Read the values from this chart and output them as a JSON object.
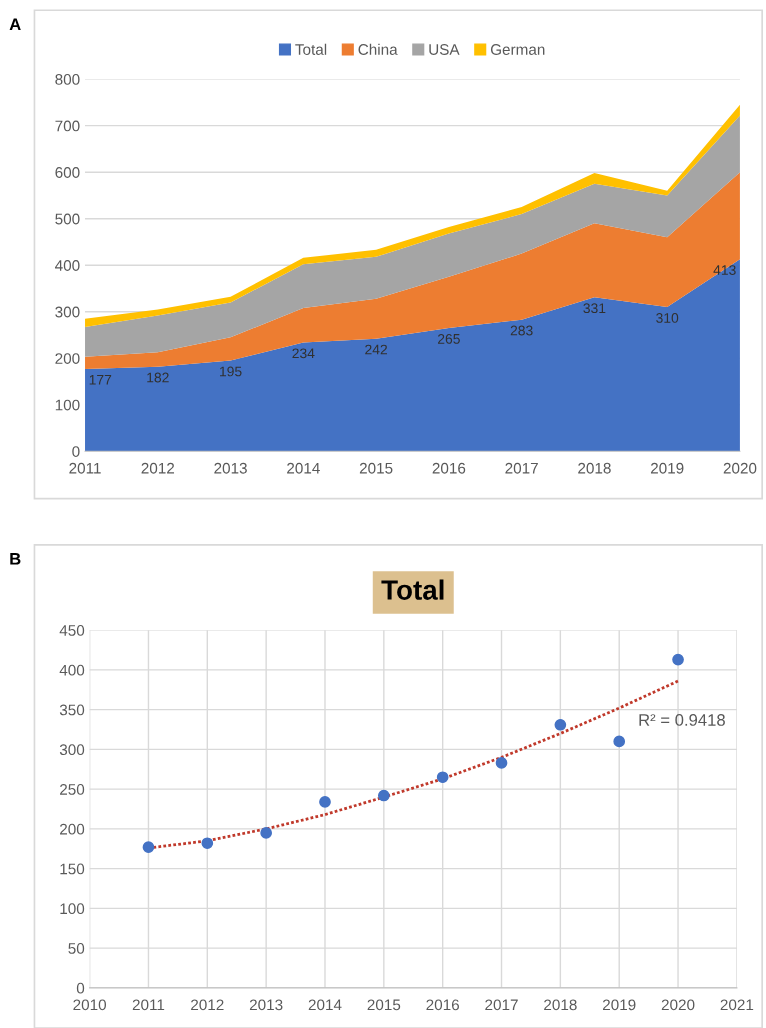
{
  "chart_data": [
    {
      "type": "area",
      "stacked": true,
      "annotations": [
        "A"
      ],
      "categories": [
        "2011",
        "2012",
        "2013",
        "2014",
        "2015",
        "2016",
        "2017",
        "2018",
        "2019",
        "2020"
      ],
      "series": [
        {
          "name": "Total",
          "color": "#4472c4",
          "values": [
            177,
            182,
            195,
            234,
            242,
            265,
            283,
            331,
            310,
            413
          ],
          "value_labels": [
            "177",
            "182",
            "195",
            "234",
            "242",
            "265",
            "283",
            "331",
            "310",
            "413"
          ]
        },
        {
          "name": "China",
          "color": "#ed7d31",
          "values": [
            26,
            31,
            50,
            74,
            86,
            110,
            142,
            159,
            150,
            187
          ]
        },
        {
          "name": "USA",
          "color": "#a5a5a5",
          "values": [
            64,
            79,
            75,
            94,
            90,
            93,
            85,
            85,
            90,
            122
          ]
        },
        {
          "name": "German",
          "color": "#ffc000",
          "values": [
            18,
            13,
            12,
            14,
            15,
            14,
            15,
            23,
            10,
            23
          ]
        }
      ],
      "ylim": [
        0,
        800
      ],
      "yticks": [
        0,
        100,
        200,
        300,
        400,
        500,
        600,
        700,
        800
      ],
      "grid": "y",
      "legend": "top"
    },
    {
      "type": "scatter",
      "title": "Total",
      "annotations": [
        "B",
        "R² = 0.9418"
      ],
      "x": [
        2011,
        2012,
        2013,
        2014,
        2015,
        2016,
        2017,
        2018,
        2019,
        2020
      ],
      "series": [
        {
          "type": "scatter",
          "color": "#4472c4",
          "marker": "circle",
          "values": [
            177,
            182,
            195,
            234,
            242,
            265,
            283,
            331,
            310,
            413
          ]
        },
        {
          "type": "line",
          "color": "#c0392b",
          "line_style": "dotted",
          "marker": "none",
          "values": [
            176,
            185,
            200,
            218,
            240,
            263,
            290,
            320,
            352,
            386
          ]
        }
      ],
      "xlim": [
        2010,
        2021
      ],
      "xticks": [
        2010,
        2011,
        2012,
        2013,
        2014,
        2015,
        2016,
        2017,
        2018,
        2019,
        2020,
        2021
      ],
      "ylim": [
        0,
        450
      ],
      "yticks": [
        0,
        50,
        100,
        150,
        200,
        250,
        300,
        350,
        400,
        450
      ],
      "grid": true
    }
  ]
}
